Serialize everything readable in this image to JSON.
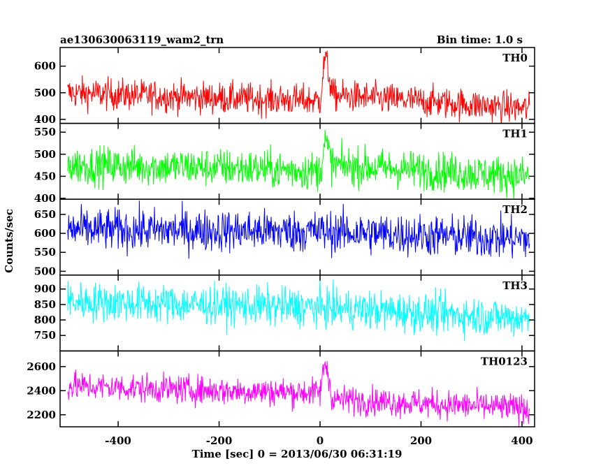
{
  "chart_data": {
    "type": "line",
    "title_left": "ae130630063119_wam2_trn",
    "title_right": "Bin time: 1.0 s",
    "xlabel": "Time [sec] 0 = 2013/06/30 06:31:19",
    "ylabel": "Counts/sec",
    "xlim": [
      -515,
      425
    ],
    "x_ticks": [
      -400,
      -200,
      0,
      200,
      400
    ],
    "x_range": [
      -500,
      415
    ],
    "bin_time_s": 1.0,
    "panels": [
      {
        "name": "TH0",
        "color": "#ff0000",
        "ylim": [
          385,
          670
        ],
        "y_ticks": [
          400,
          500,
          600
        ],
        "trend": [
          [
            -500,
            500
          ],
          [
            -200,
            480
          ],
          [
            0,
            470
          ],
          [
            10,
            640
          ],
          [
            25,
            490
          ],
          [
            415,
            440
          ]
        ],
        "spread": 30
      },
      {
        "name": "TH1",
        "color": "#00ff00",
        "ylim": [
          398,
          570
        ],
        "y_ticks": [
          400,
          450,
          500,
          550
        ],
        "trend": [
          [
            -500,
            475
          ],
          [
            -200,
            470
          ],
          [
            0,
            462
          ],
          [
            10,
            530
          ],
          [
            25,
            475
          ],
          [
            415,
            450
          ]
        ],
        "spread": 22
      },
      {
        "name": "TH2",
        "color": "#0000ff",
        "ylim": [
          490,
          690
        ],
        "y_ticks": [
          500,
          550,
          600,
          650
        ],
        "trend": [
          [
            -500,
            610
          ],
          [
            0,
            605
          ],
          [
            415,
            585
          ]
        ],
        "spread": 28
      },
      {
        "name": "TH3",
        "color": "#00ffff",
        "ylim": [
          700,
          945
        ],
        "y_ticks": [
          750,
          800,
          850,
          900
        ],
        "trend": [
          [
            -500,
            860
          ],
          [
            0,
            840
          ],
          [
            415,
            805
          ]
        ],
        "spread": 32
      },
      {
        "name": "TH0123",
        "color": "#ff00ff",
        "ylim": [
          2100,
          2730
        ],
        "y_ticks": [
          2200,
          2400,
          2600
        ],
        "trend": [
          [
            -500,
            2440
          ],
          [
            -200,
            2400
          ],
          [
            0,
            2385
          ],
          [
            10,
            2650
          ],
          [
            25,
            2330
          ],
          [
            415,
            2250
          ]
        ],
        "spread": 60
      }
    ]
  }
}
